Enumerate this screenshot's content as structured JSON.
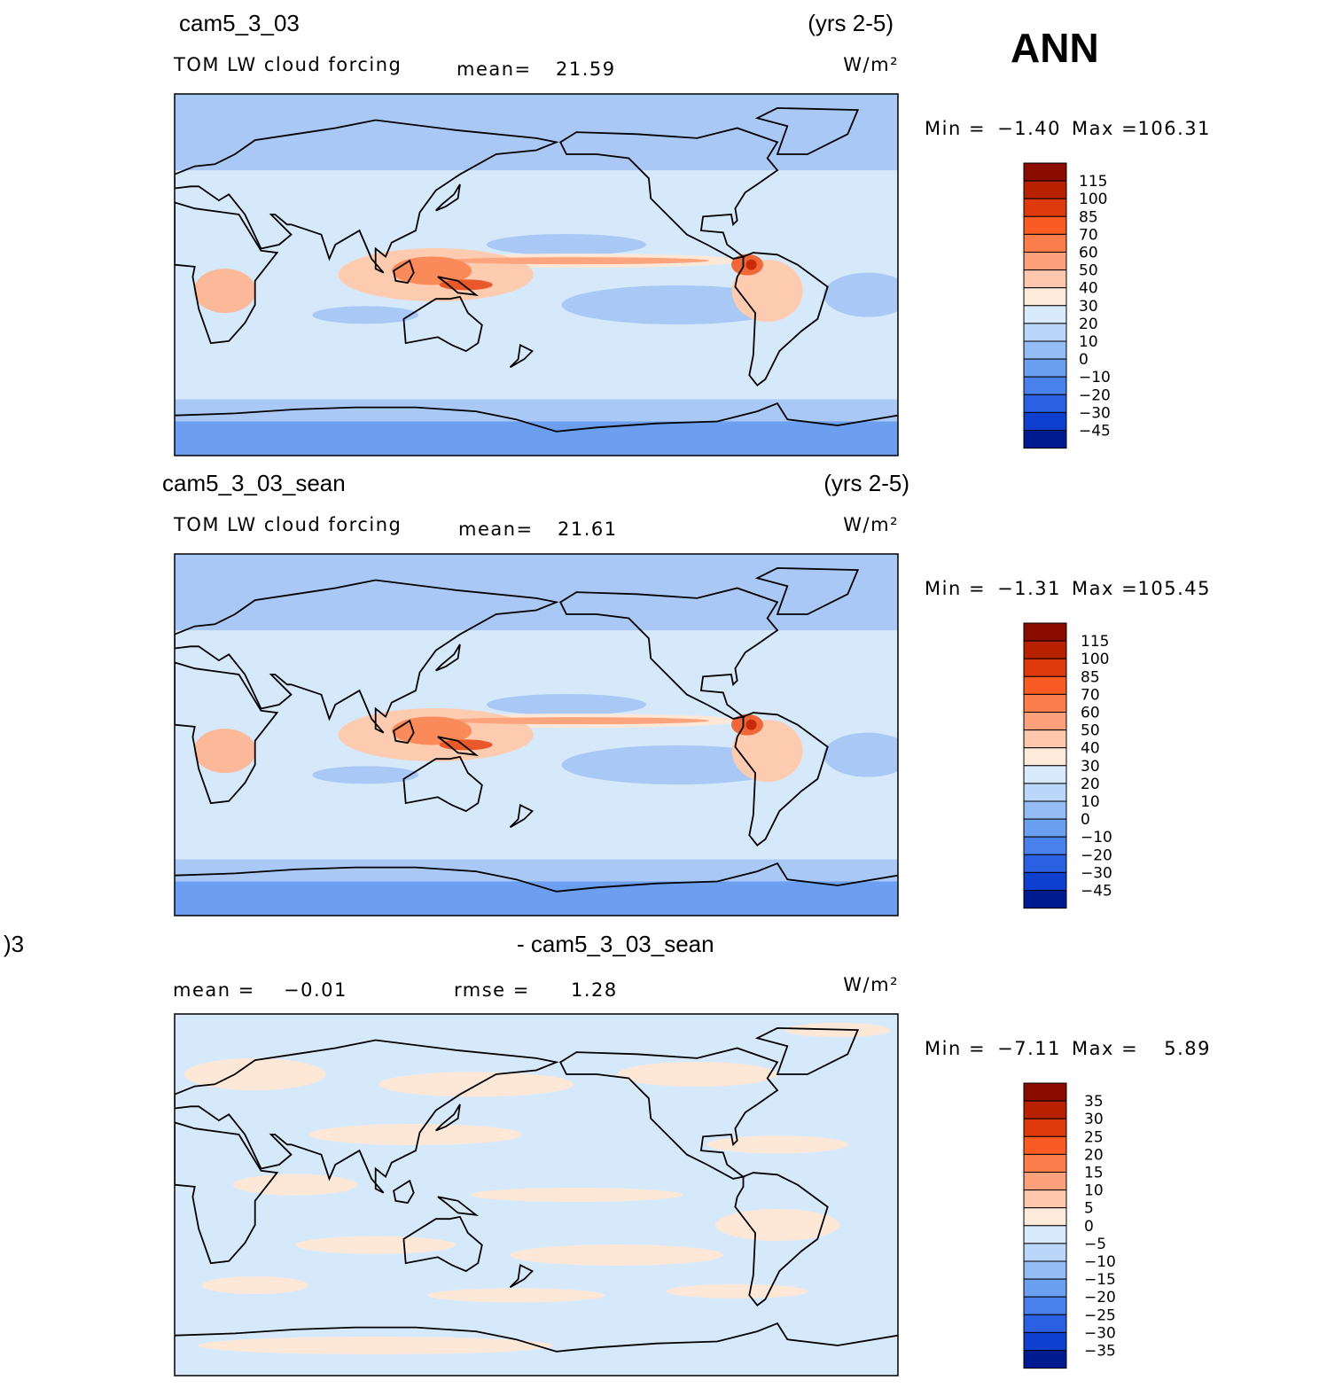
{
  "season": "ANN",
  "panels": [
    {
      "case": "cam5_3_03",
      "years": "(yrs 2-5)",
      "variable": "TOM LW cloud forcing",
      "mean_label": "mean=",
      "mean": "21.59",
      "units": "W/m²",
      "min_label": "Min =",
      "min": "−1.40",
      "max_label": "Max =",
      "max": "106.31",
      "colorbar": [
        "115",
        "100",
        "85",
        "70",
        "60",
        "50",
        "40",
        "30",
        "20",
        "10",
        "0",
        "−10",
        "−20",
        "−30",
        "−45"
      ]
    },
    {
      "case": "cam5_3_03_sean",
      "years": "(yrs 2-5)",
      "variable": "TOM LW cloud forcing",
      "mean_label": "mean=",
      "mean": "21.61",
      "units": "W/m²",
      "min_label": "Min =",
      "min": "−1.31",
      "max_label": "Max =",
      "max": "105.45",
      "colorbar": [
        "115",
        "100",
        "85",
        "70",
        "60",
        "50",
        "40",
        "30",
        "20",
        "10",
        "0",
        "−10",
        "−20",
        "−30",
        "−45"
      ]
    },
    {
      "case_left": ")3",
      "case": "- cam5_3_03_sean",
      "mean_label": "mean =",
      "mean": "−0.01",
      "rmse_label": "rmse =",
      "rmse": "1.28",
      "units": "W/m²",
      "min_label": "Min =",
      "min": "−7.11",
      "max_label": "Max =",
      "max": "5.89",
      "colorbar": [
        "35",
        "30",
        "25",
        "20",
        "15",
        "10",
        "5",
        "0",
        "−5",
        "−10",
        "−15",
        "−20",
        "−25",
        "−30",
        "−35"
      ]
    }
  ]
}
